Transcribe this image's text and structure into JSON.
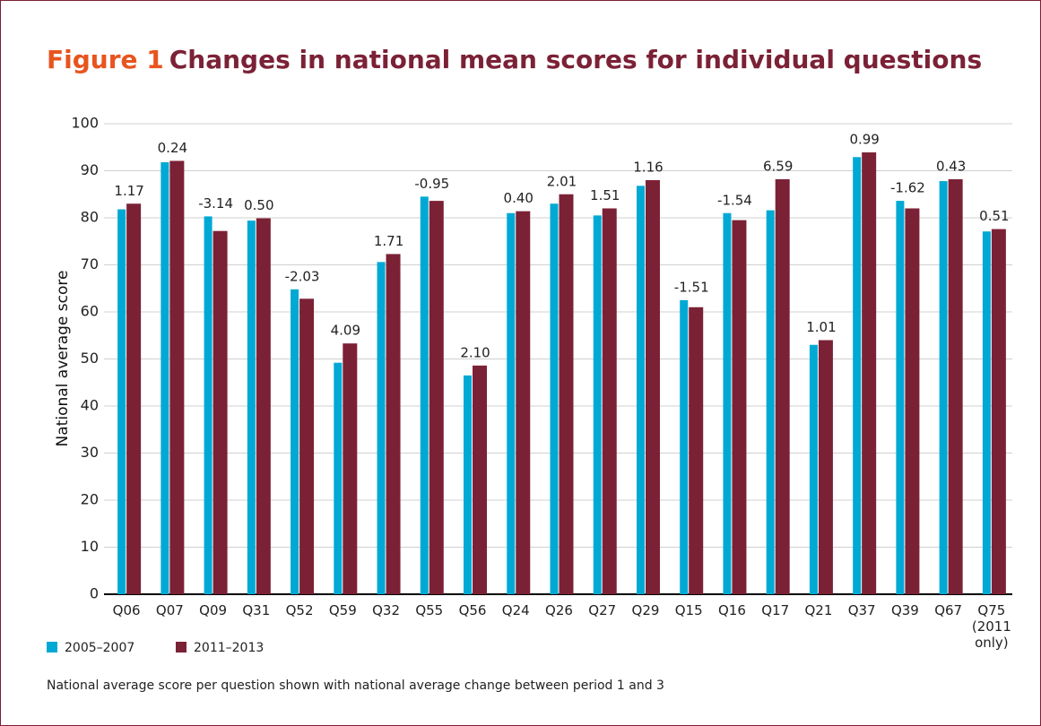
{
  "chart_data": {
    "type": "bar",
    "figure_label": "Figure 1",
    "title": "Changes in national mean scores for individual questions",
    "y_label": "National average score",
    "note": "National average score per question shown with national average change between period 1 and 3",
    "categories": [
      "Q06",
      "Q07",
      "Q09",
      "Q31",
      "Q52",
      "Q59",
      "Q32",
      "Q55",
      "Q56",
      "Q24",
      "Q26",
      "Q27",
      "Q29",
      "Q15",
      "Q16",
      "Q17",
      "Q21",
      "Q37",
      "Q39",
      "Q67",
      "Q75 (2011 only)"
    ],
    "series": [
      {
        "name": "2005–2007",
        "color": "#00a9d4",
        "values": [
          81.8,
          91.8,
          80.3,
          79.4,
          64.8,
          49.2,
          70.6,
          84.5,
          46.5,
          81.0,
          83.0,
          80.5,
          86.8,
          62.5,
          81.0,
          81.6,
          53.0,
          92.9,
          83.6,
          87.8,
          77.1
        ]
      },
      {
        "name": "2011–2013",
        "color": "#7b2136",
        "values": [
          83.0,
          92.1,
          77.2,
          79.9,
          62.8,
          53.3,
          72.3,
          83.6,
          48.6,
          81.4,
          85.0,
          82.0,
          88.0,
          61.0,
          79.5,
          88.2,
          54.0,
          93.9,
          82.0,
          88.2,
          77.6
        ]
      }
    ],
    "annotations": [
      "1.17",
      "0.24",
      "-3.14",
      "0.50",
      "-2.03",
      "4.09",
      "1.71",
      "-0.95",
      "2.10",
      "0.40",
      "2.01",
      "1.51",
      "1.16",
      "-1.51",
      "-1.54",
      "6.59",
      "1.01",
      "0.99",
      "-1.62",
      "0.43",
      "0.51"
    ],
    "ylim": [
      0,
      100
    ],
    "yticks": [
      0,
      10,
      20,
      30,
      40,
      50,
      60,
      70,
      80,
      90,
      100
    ],
    "grid": true
  }
}
